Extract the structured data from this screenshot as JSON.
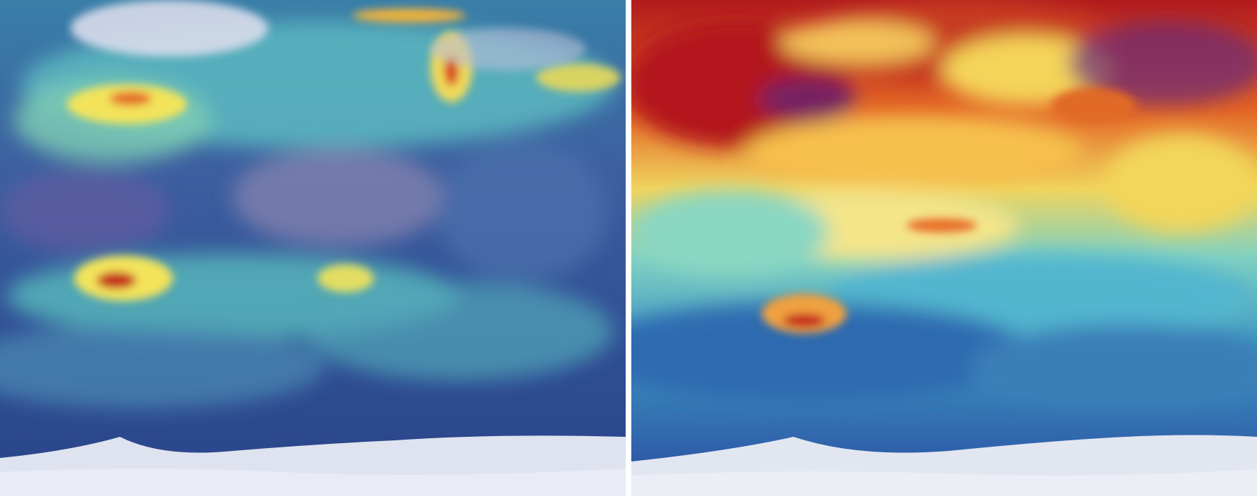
{
  "panels": [
    {
      "id": "left",
      "palette": {
        "low": "#2d3f8f",
        "mid": "#5ab7c4",
        "mid2": "#8ad6c0",
        "high": "#f5e35a",
        "peak": "#d8401c",
        "ice": "#dfe3ef"
      }
    },
    {
      "id": "right",
      "palette": {
        "low": "#2a4aa0",
        "mid": "#4cc4d8",
        "mid2": "#f3e46a",
        "high": "#ef7e2b",
        "peak": "#b21b1d",
        "ice": "#e2e6f0"
      }
    }
  ]
}
